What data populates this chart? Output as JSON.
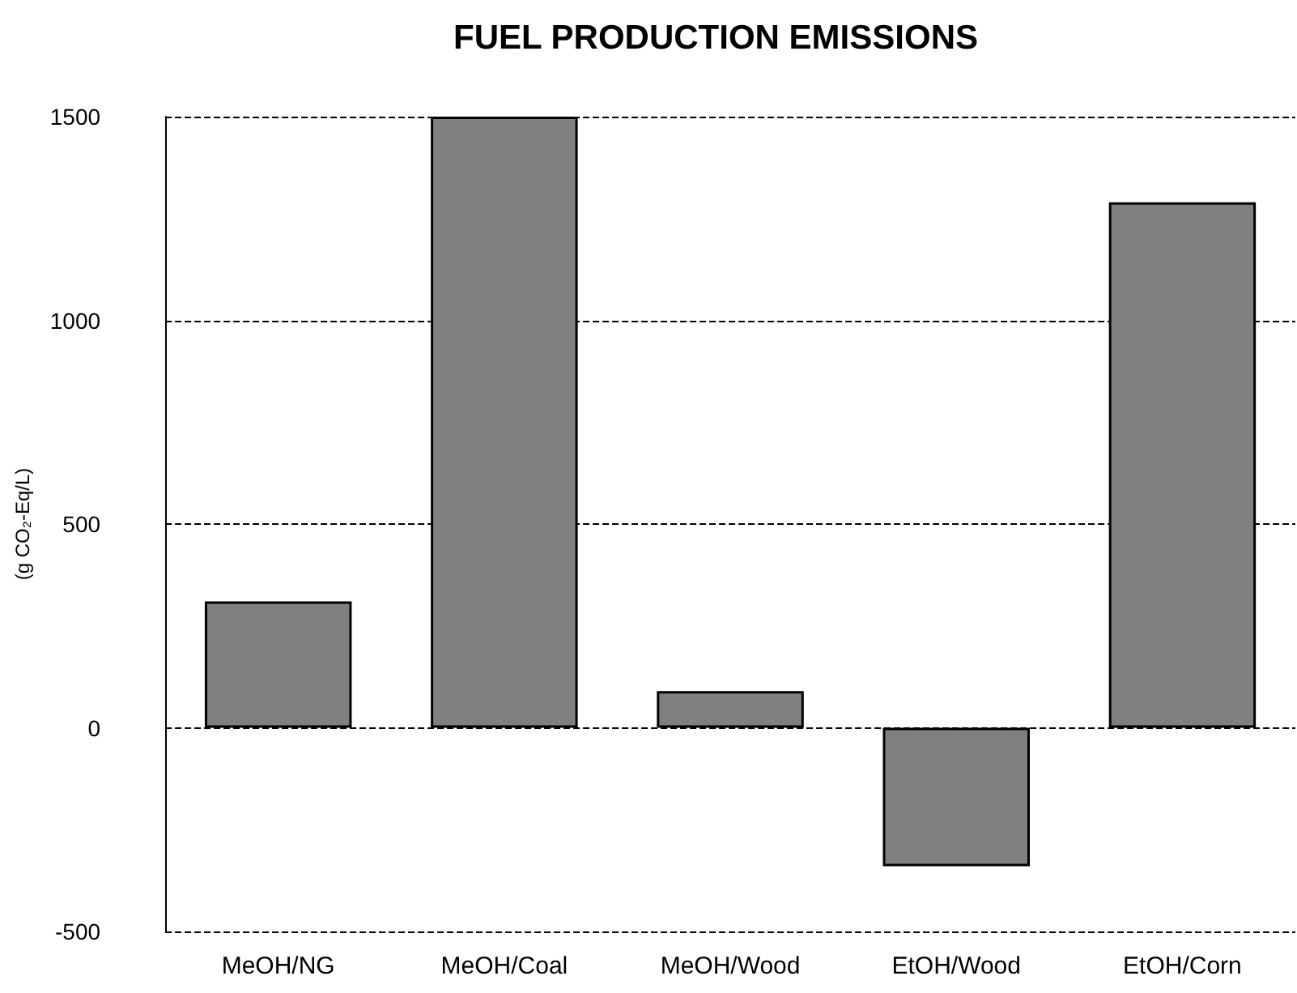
{
  "chart_data": {
    "type": "bar",
    "title": "FUEL PRODUCTION EMISSIONS",
    "ylabel": "(g CO₂-Eq/L)",
    "categories": [
      "MeOH/NG",
      "MeOH/Coal",
      "MeOH/Wood",
      "EtOH/Wood",
      "EtOH/Corn"
    ],
    "values": [
      310,
      1500,
      90,
      -340,
      1290
    ],
    "color": "#808080",
    "ylim": [
      -500,
      1500
    ],
    "yticks": [
      -500,
      0,
      500,
      1000,
      1500
    ],
    "grid": "y",
    "line_style": "dashed"
  }
}
